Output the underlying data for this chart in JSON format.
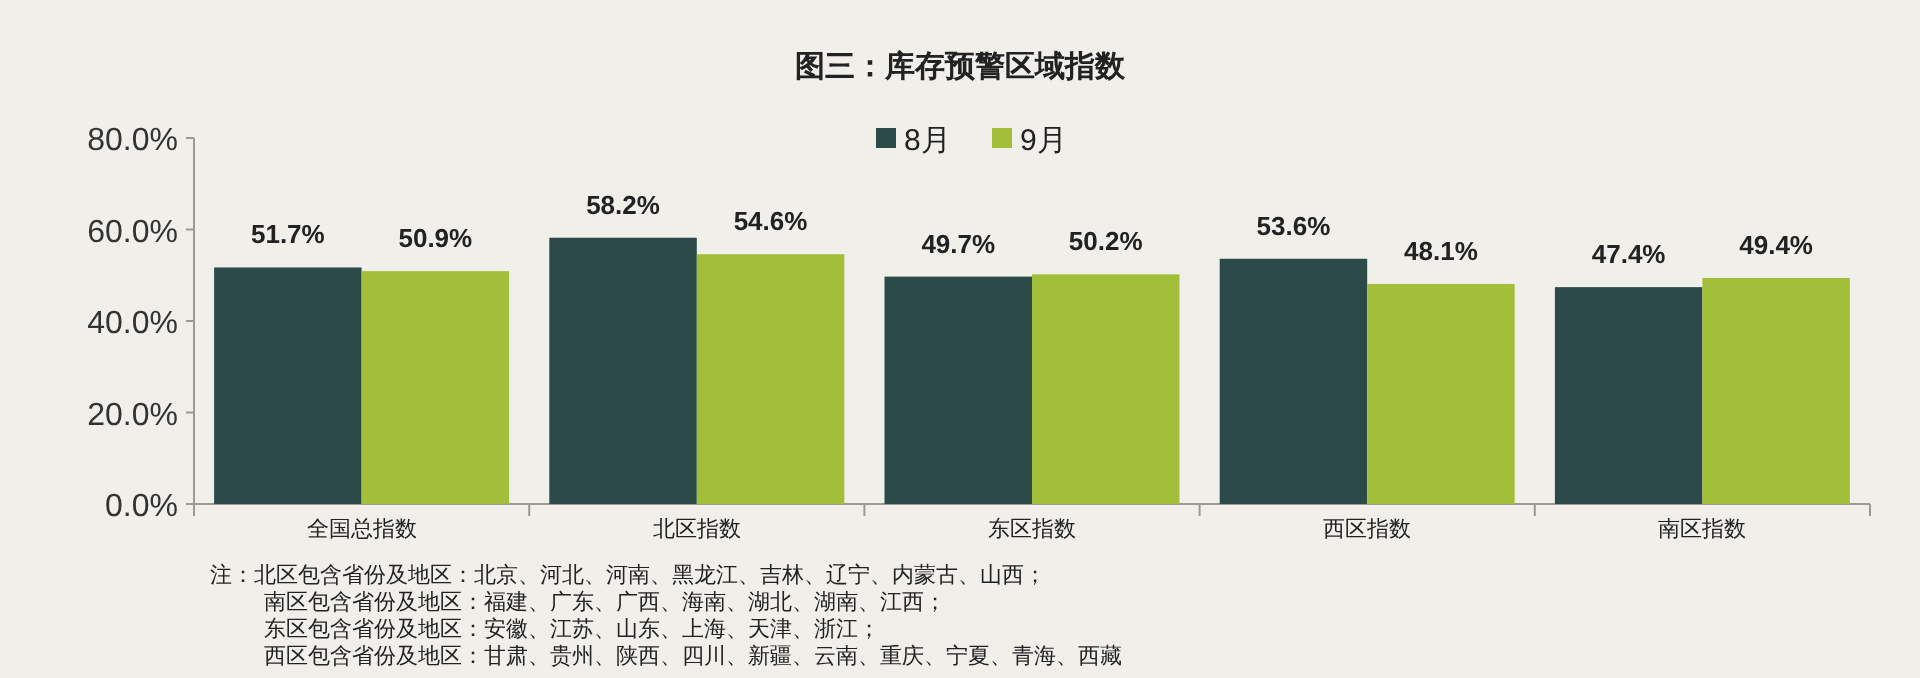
{
  "chart_data": {
    "type": "bar",
    "title": "图三：库存预警区域指数",
    "categories": [
      "全国总指数",
      "北区指数",
      "东区指数",
      "西区指数",
      "南区指数"
    ],
    "series": [
      {
        "name": "8月",
        "color": "#2b4a48",
        "values": [
          51.7,
          58.2,
          49.7,
          53.6,
          47.4
        ],
        "value_labels": [
          "51.7%",
          "58.2%",
          "49.7%",
          "53.6%",
          "47.4%"
        ]
      },
      {
        "name": "9月",
        "color": "#a3bf3a",
        "values": [
          50.9,
          54.6,
          50.2,
          48.1,
          49.4
        ],
        "value_labels": [
          "50.9%",
          "54.6%",
          "50.2%",
          "48.1%",
          "49.4%"
        ]
      }
    ],
    "ylim": [
      0,
      80
    ],
    "yticks": [
      {
        "value": 0,
        "label": "0.0%"
      },
      {
        "value": 20,
        "label": "20.0%"
      },
      {
        "value": 40,
        "label": "40.0%"
      },
      {
        "value": 60,
        "label": "60.0%"
      },
      {
        "value": 80,
        "label": "80.0%"
      }
    ],
    "grid": false,
    "legend": "top",
    "annotations": [
      "注：北区包含省份及地区：北京、河北、河南、黑龙江、吉林、辽宁、内蒙古、山西；",
      "南区包含省份及地区：福建、广东、广西、海南、湖北、湖南、江西；",
      "东区包含省份及地区：安徽、江苏、山东、上海、天津、浙江；",
      "西区包含省份及地区：甘肃、贵州、陕西、四川、新疆、云南、重庆、宁夏、青海、西藏"
    ]
  }
}
